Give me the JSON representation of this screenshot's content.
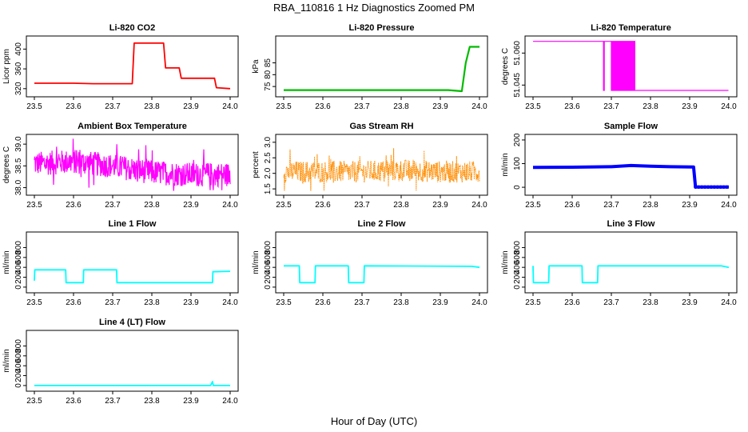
{
  "figure": {
    "title": "RBA_110816  1 Hz Diagnostics Zoomed PM",
    "xlabel": "Hour of Day (UTC)"
  },
  "chart_data": [
    {
      "id": "co2",
      "type": "line",
      "title": "Li-820 CO2",
      "ylabel": "Licor ppm",
      "color": "#ff0000",
      "xlim": [
        23.5,
        24.0
      ],
      "ylim": [
        310,
        420
      ],
      "xticks": [
        "23.5",
        "23.6",
        "23.7",
        "23.8",
        "23.9",
        "24.0"
      ],
      "yticks": [
        {
          "v": 320,
          "label": "320"
        },
        {
          "v": 360,
          "label": "360"
        },
        {
          "v": 400,
          "label": "400"
        }
      ],
      "style": "steps",
      "series": [
        {
          "name": "CO2",
          "x": [
            23.5,
            23.6,
            23.65,
            23.7,
            23.75,
            23.755,
            23.83,
            23.835,
            23.87,
            23.875,
            23.96,
            23.965,
            24.0
          ],
          "y": [
            331,
            331,
            330,
            330,
            330,
            412,
            412,
            362,
            362,
            341,
            341,
            322,
            320
          ]
        }
      ]
    },
    {
      "id": "pressure",
      "type": "line",
      "title": "Li-820 Pressure",
      "ylabel": "kPa",
      "color": "#00bb00",
      "xlim": [
        23.5,
        24.0
      ],
      "ylim": [
        72,
        95
      ],
      "xticks": [
        "23.5",
        "23.6",
        "23.7",
        "23.8",
        "23.9",
        "24.0"
      ],
      "yticks": [
        {
          "v": 75,
          "label": "75"
        },
        {
          "v": 80,
          "label": "80"
        },
        {
          "v": 85,
          "label": "85"
        }
      ],
      "style": "line",
      "series": [
        {
          "name": "Pressure",
          "x": [
            23.5,
            23.92,
            23.955,
            23.965,
            23.975,
            24.0
          ],
          "y": [
            73.5,
            73.5,
            73.0,
            85,
            91.8,
            91.8
          ]
        }
      ]
    },
    {
      "id": "temperature",
      "type": "line",
      "title": "Li-820 Temperature",
      "ylabel": "degrees C",
      "color": "#ff00ff",
      "xlim": [
        23.5,
        24.0
      ],
      "ylim": [
        51.041,
        51.0665
      ],
      "xticks": [
        "23.5",
        "23.6",
        "23.7",
        "23.8",
        "23.9",
        "24.0"
      ],
      "yticks": [
        {
          "v": 51.045,
          "label": "51.045"
        },
        {
          "v": 51.06,
          "label": "51.060"
        }
      ],
      "style": "steps",
      "series": [
        {
          "name": "Temperature",
          "x": [
            23.5,
            23.68,
            23.681,
            23.683,
            23.684,
            23.7,
            23.701,
            23.703,
            23.704,
            23.71,
            23.76,
            23.761,
            23.999
          ],
          "y": [
            51.0655,
            51.0655,
            51.0425,
            51.0425,
            51.0655,
            51.0655,
            51.0425,
            51.0425,
            51.0655,
            51.0655,
            51.0655,
            51.0425,
            51.0425
          ]
        }
      ]
    },
    {
      "id": "ambient",
      "type": "line",
      "title": "Ambient Box Temperature",
      "ylabel": "degrees C",
      "color": "#ff00ff",
      "xlim": [
        23.5,
        24.0
      ],
      "ylim": [
        37.9,
        39.15
      ],
      "xticks": [
        "23.5",
        "23.6",
        "23.7",
        "23.8",
        "23.9",
        "24.0"
      ],
      "yticks": [
        {
          "v": 38.0,
          "label": "38.0"
        },
        {
          "v": 38.5,
          "label": "38.5"
        },
        {
          "v": 39.0,
          "label": "39.0"
        }
      ],
      "style": "noisy",
      "series": [
        {
          "name": "Ambient",
          "x": [
            23.5,
            23.6,
            23.7,
            23.8,
            23.9,
            24.0
          ],
          "y": [
            38.55,
            38.6,
            38.5,
            38.35,
            38.3,
            38.3
          ]
        }
      ]
    },
    {
      "id": "rh",
      "type": "line",
      "title": "Gas Stream RH",
      "ylabel": "percent",
      "color": "#ff8c00",
      "xlim": [
        23.5,
        24.0
      ],
      "ylim": [
        1.4,
        3.15
      ],
      "xticks": [
        "23.5",
        "23.6",
        "23.7",
        "23.8",
        "23.9",
        "24.0"
      ],
      "yticks": [
        {
          "v": 1.5,
          "label": "1.5"
        },
        {
          "v": 2.0,
          "label": "2.0"
        },
        {
          "v": 2.5,
          "label": "2.5"
        },
        {
          "v": 3.0,
          "label": "3.0"
        }
      ],
      "style": "noisy",
      "series": [
        {
          "name": "RH",
          "x": [
            23.5,
            23.6,
            23.7,
            23.8,
            23.9,
            24.0
          ],
          "y": [
            2.05,
            2.05,
            2.05,
            2.1,
            2.05,
            2.05
          ]
        }
      ]
    },
    {
      "id": "sample",
      "type": "line",
      "title": "Sample Flow",
      "ylabel": "ml/min",
      "color": "#0000ff",
      "xlim": [
        23.5,
        24.0
      ],
      "ylim": [
        -20,
        210
      ],
      "xticks": [
        "23.5",
        "23.6",
        "23.7",
        "23.8",
        "23.9",
        "24.0"
      ],
      "yticks": [
        {
          "v": 0,
          "label": "0"
        },
        {
          "v": 100,
          "label": "100"
        },
        {
          "v": 200,
          "label": "200"
        }
      ],
      "style": "thick",
      "series": [
        {
          "name": "Sample",
          "x": [
            23.5,
            23.6,
            23.7,
            23.75,
            23.8,
            23.85,
            23.91,
            23.915,
            24.0
          ],
          "y": [
            84,
            85,
            87,
            92,
            89,
            87,
            86,
            1,
            1
          ]
        }
      ]
    },
    {
      "id": "line1",
      "type": "line",
      "title": "Line 1 Flow",
      "ylabel": "ml/min",
      "color": "#00ffff",
      "xlim": [
        23.5,
        24.0
      ],
      "ylim": [
        -50,
        1050
      ],
      "xticks": [
        "23.5",
        "23.6",
        "23.7",
        "23.8",
        "23.9",
        "24.0"
      ],
      "yticks": [
        {
          "v": 0,
          "label": "0"
        },
        {
          "v": 200,
          "label": "200"
        },
        {
          "v": 400,
          "label": "400"
        },
        {
          "v": 600,
          "label": "600"
        },
        {
          "v": 800,
          "label": "800"
        }
      ],
      "style": "steps",
      "series": [
        {
          "name": "Line1",
          "x": [
            23.5,
            23.501,
            23.58,
            23.581,
            23.625,
            23.626,
            23.71,
            23.711,
            23.955,
            23.956,
            24.0
          ],
          "y": [
            130,
            350,
            350,
            90,
            90,
            350,
            350,
            90,
            90,
            310,
            320
          ]
        }
      ]
    },
    {
      "id": "line2",
      "type": "line",
      "title": "Line 2 Flow",
      "ylabel": "ml/min",
      "color": "#00ffff",
      "xlim": [
        23.5,
        24.0
      ],
      "ylim": [
        -50,
        1050
      ],
      "xticks": [
        "23.5",
        "23.6",
        "23.7",
        "23.8",
        "23.9",
        "24.0"
      ],
      "yticks": [
        {
          "v": 0,
          "label": "0"
        },
        {
          "v": 200,
          "label": "200"
        },
        {
          "v": 400,
          "label": "400"
        },
        {
          "v": 600,
          "label": "600"
        },
        {
          "v": 800,
          "label": "800"
        }
      ],
      "style": "steps",
      "series": [
        {
          "name": "Line2",
          "x": [
            23.5,
            23.54,
            23.541,
            23.58,
            23.581,
            23.665,
            23.666,
            23.705,
            23.706,
            23.98,
            24.0
          ],
          "y": [
            430,
            430,
            90,
            90,
            430,
            430,
            90,
            90,
            430,
            420,
            400
          ]
        }
      ]
    },
    {
      "id": "line3",
      "type": "line",
      "title": "Line 3 Flow",
      "ylabel": "ml/min",
      "color": "#00ffff",
      "xlim": [
        23.5,
        24.0
      ],
      "ylim": [
        -50,
        1050
      ],
      "xticks": [
        "23.5",
        "23.6",
        "23.7",
        "23.8",
        "23.9",
        "24.0"
      ],
      "yticks": [
        {
          "v": 0,
          "label": "0"
        },
        {
          "v": 200,
          "label": "200"
        },
        {
          "v": 400,
          "label": "400"
        },
        {
          "v": 600,
          "label": "600"
        },
        {
          "v": 800,
          "label": "800"
        }
      ],
      "style": "steps",
      "series": [
        {
          "name": "Line3",
          "x": [
            23.5,
            23.501,
            23.54,
            23.541,
            23.625,
            23.626,
            23.665,
            23.666,
            23.98,
            24.0
          ],
          "y": [
            430,
            90,
            90,
            430,
            430,
            90,
            90,
            430,
            430,
            400
          ]
        }
      ]
    },
    {
      "id": "line4",
      "type": "line",
      "title": "Line 4 (LT) Flow",
      "ylabel": "ml/min",
      "color": "#00ffff",
      "xlim": [
        23.5,
        24.0
      ],
      "ylim": [
        -50,
        1050
      ],
      "xticks": [
        "23.5",
        "23.6",
        "23.7",
        "23.8",
        "23.9",
        "24.0"
      ],
      "yticks": [
        {
          "v": 0,
          "label": "0"
        },
        {
          "v": 200,
          "label": "200"
        },
        {
          "v": 400,
          "label": "400"
        },
        {
          "v": 600,
          "label": "600"
        },
        {
          "v": 800,
          "label": "800"
        }
      ],
      "style": "steps",
      "series": [
        {
          "name": "Line4",
          "x": [
            23.5,
            23.95,
            23.955,
            23.957,
            23.96,
            24.0
          ],
          "y": [
            0,
            0,
            80,
            0,
            0,
            0
          ]
        }
      ]
    }
  ]
}
